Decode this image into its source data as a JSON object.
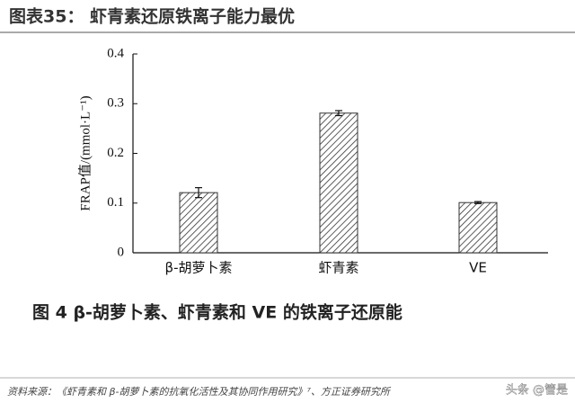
{
  "header": {
    "title": "图表35：  虾青素还原铁离子能力最优"
  },
  "chart_data": {
    "type": "bar",
    "ylabel": "FRAP值/(mmol·L⁻¹)",
    "categories": [
      "β-胡萝卜素",
      "虾青素",
      "VE"
    ],
    "values": [
      0.121,
      0.281,
      0.101
    ],
    "errors": [
      0.01,
      0.005,
      0.002
    ],
    "color": "#333333",
    "ylim": [
      0,
      0.4
    ],
    "yticks": [
      0,
      0.1,
      0.2,
      0.3,
      0.4
    ],
    "caption": "图 4   β-胡萝卜素、虾青素和 VE 的铁离子还原能"
  },
  "footer": {
    "source": "资料来源：《虾青素和 β-胡萝卜素的抗氧化活性及其协同作用研究》⁷、方正证券研究所",
    "watermark": "头条 @管是"
  }
}
